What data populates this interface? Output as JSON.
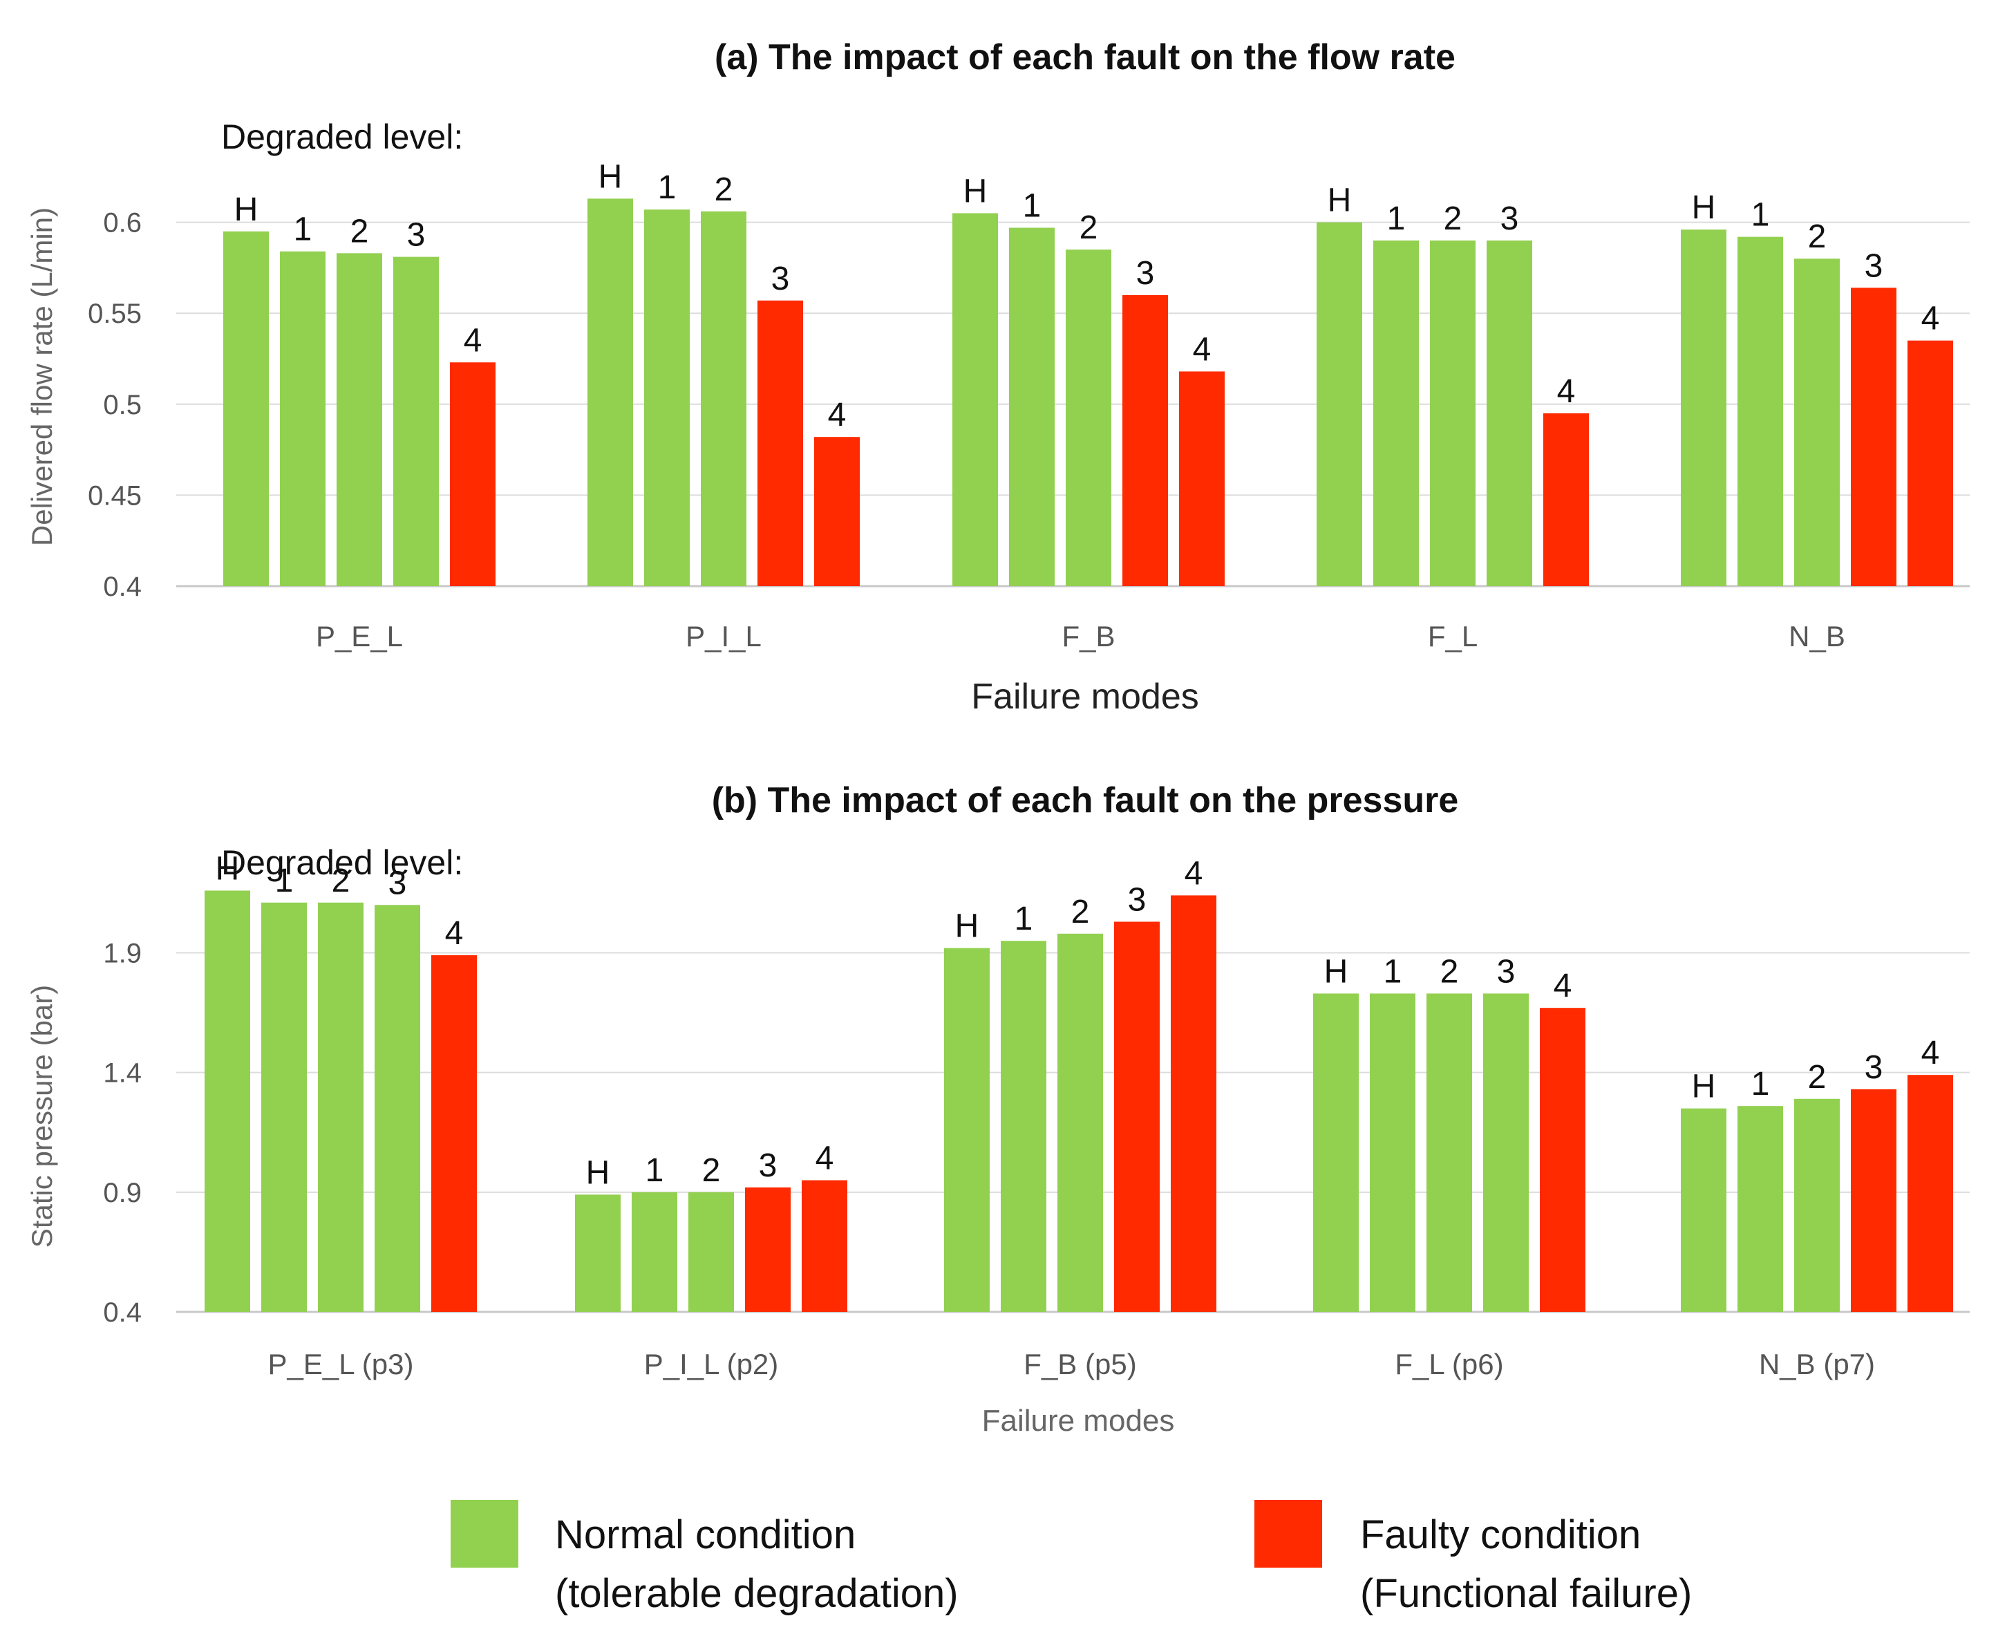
{
  "chart_data": [
    {
      "type": "bar",
      "title": "(a) The impact of each fault on the flow rate",
      "annotation": "Degraded level:",
      "xlabel": "Failure modes",
      "ylabel": "Delivered flow rate (L/min)",
      "ylim": [
        0.4,
        0.65
      ],
      "yticks": [
        "0.4",
        "0.45",
        "0.5",
        "0.55",
        "0.6"
      ],
      "categories": [
        "P_E_L",
        "P_I_L",
        "F_B",
        "F_L",
        "N_B"
      ],
      "level_labels": [
        "H",
        "1",
        "2",
        "3",
        "4"
      ],
      "series": [
        {
          "name": "H",
          "values": [
            0.595,
            0.613,
            0.605,
            0.6,
            0.596
          ]
        },
        {
          "name": "1",
          "values": [
            0.584,
            0.607,
            0.597,
            0.59,
            0.592
          ]
        },
        {
          "name": "2",
          "values": [
            0.583,
            0.606,
            0.585,
            0.59,
            0.58
          ]
        },
        {
          "name": "3",
          "values": [
            0.581,
            0.557,
            0.56,
            0.59,
            0.564
          ]
        },
        {
          "name": "4",
          "values": [
            0.523,
            0.482,
            0.518,
            0.495,
            0.535
          ]
        }
      ],
      "faulty_from_level": [
        4,
        3,
        3,
        4,
        3
      ],
      "grid": true
    },
    {
      "type": "bar",
      "title": "(b) The impact of each fault on the pressure",
      "annotation": "Degraded level:",
      "xlabel": "Failure modes",
      "ylabel": "Static pressure (bar)",
      "ylim": [
        0.4,
        2.3
      ],
      "yticks": [
        "0.4",
        "0.9",
        "1.4",
        "1.9"
      ],
      "categories": [
        "P_E_L (p3)",
        "P_I_L (p2)",
        "F_B (p5)",
        "F_L (p6)",
        "N_B (p7)"
      ],
      "level_labels": [
        "H",
        "1",
        "2",
        "3",
        "4"
      ],
      "series": [
        {
          "name": "H",
          "values": [
            2.16,
            0.89,
            1.92,
            1.73,
            1.25
          ]
        },
        {
          "name": "1",
          "values": [
            2.11,
            0.9,
            1.95,
            1.73,
            1.26
          ]
        },
        {
          "name": "2",
          "values": [
            2.11,
            0.9,
            1.98,
            1.73,
            1.29
          ]
        },
        {
          "name": "3",
          "values": [
            2.1,
            0.92,
            2.03,
            1.73,
            1.33
          ]
        },
        {
          "name": "4",
          "values": [
            1.89,
            0.95,
            2.14,
            1.67,
            1.39
          ]
        }
      ],
      "faulty_from_level": [
        4,
        3,
        3,
        4,
        3
      ],
      "grid": true
    }
  ],
  "legend": [
    {
      "line1": "Normal condition",
      "line2": "(tolerable degradation)",
      "color": "#92D050"
    },
    {
      "line1": "Faulty condition",
      "line2": "(Functional failure)",
      "color": "#FF2A00"
    }
  ]
}
